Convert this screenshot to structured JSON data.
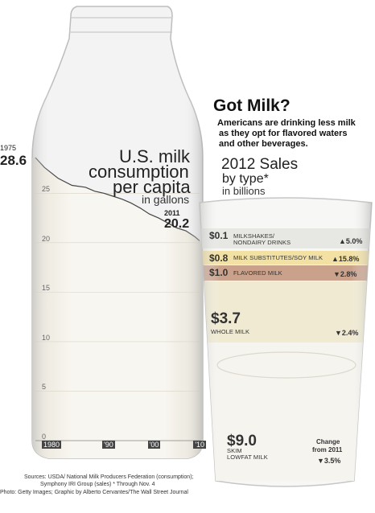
{
  "headline": "Got Milk?",
  "deck": [
    "Americans are drinking less milk",
    "as they opt for flavored waters",
    "and other beverages."
  ],
  "credits": {
    "sources_line1": "Sources: USDA/ National Milk Producers Federation (consumption);",
    "sources_line2": "Symphony IRI Group (sales) * Through Nov. 4",
    "photo_line": "Photo: Getty Images; Graphic by Alberto Cervantes/The Wall Street Journal"
  },
  "chart_data": [
    {
      "type": "area",
      "title_lines": [
        "U.S. milk",
        "consumption",
        "per capita"
      ],
      "unit_label": "in gallons",
      "x_ticks": [
        "1980",
        "'90",
        "'00",
        "'10"
      ],
      "x_tick_values": [
        1980,
        1990,
        2000,
        2010
      ],
      "y_ticks": [
        0,
        5,
        10,
        15,
        20,
        25
      ],
      "xlim": [
        1975,
        2011
      ],
      "ylim": [
        0,
        28.6
      ],
      "start_label": {
        "year": "1975",
        "value": "28.6"
      },
      "end_label": {
        "year": "2011",
        "value": "20.2"
      },
      "x": [
        1975,
        1977,
        1980,
        1983,
        1986,
        1988,
        1990,
        1992,
        1994,
        1996,
        1998,
        2000,
        2002,
        2004,
        2006,
        2008,
        2010,
        2011
      ],
      "y": [
        28.6,
        27.6,
        26.5,
        25.8,
        25.6,
        25.2,
        25.0,
        24.7,
        24.4,
        24.0,
        23.5,
        22.9,
        22.5,
        22.0,
        21.5,
        21.2,
        20.6,
        20.2
      ],
      "colors": {
        "milk": "#f4f1ea",
        "line": "#444444",
        "glass": "#cfcfcf"
      }
    },
    {
      "type": "bar",
      "title": "2012 Sales",
      "title_line2": "by type*",
      "unit_label": "in billions",
      "change_header_lines": [
        "Change",
        "from 2011"
      ],
      "segments": [
        {
          "value": 0.1,
          "value_label": "$0.1",
          "name_lines": [
            "MILKSHAKES/",
            "NONDAIRY DRINKS"
          ],
          "change": "▲5.0%",
          "color": "#e7e7e3"
        },
        {
          "value": 0.8,
          "value_label": "$0.8",
          "name_lines": [
            "MILK SUBSTITUTES/SOY MILK"
          ],
          "change": "▲15.8%",
          "color": "#f2e1a3"
        },
        {
          "value": 1.0,
          "value_label": "$1.0",
          "name_lines": [
            "FLAVORED MILK"
          ],
          "change": "▼2.8%",
          "color": "#caa28c"
        },
        {
          "value": 3.7,
          "value_label": "$3.7",
          "name_lines": [
            "WHOLE MILK"
          ],
          "change": "▼2.4%",
          "color": "#f0ead2"
        },
        {
          "value": 9.0,
          "value_label": "$9.0",
          "name_lines": [
            "SKIM",
            "LOWFAT MILK"
          ],
          "change": "▼3.5%",
          "color": "#f6f4ef"
        }
      ]
    }
  ]
}
